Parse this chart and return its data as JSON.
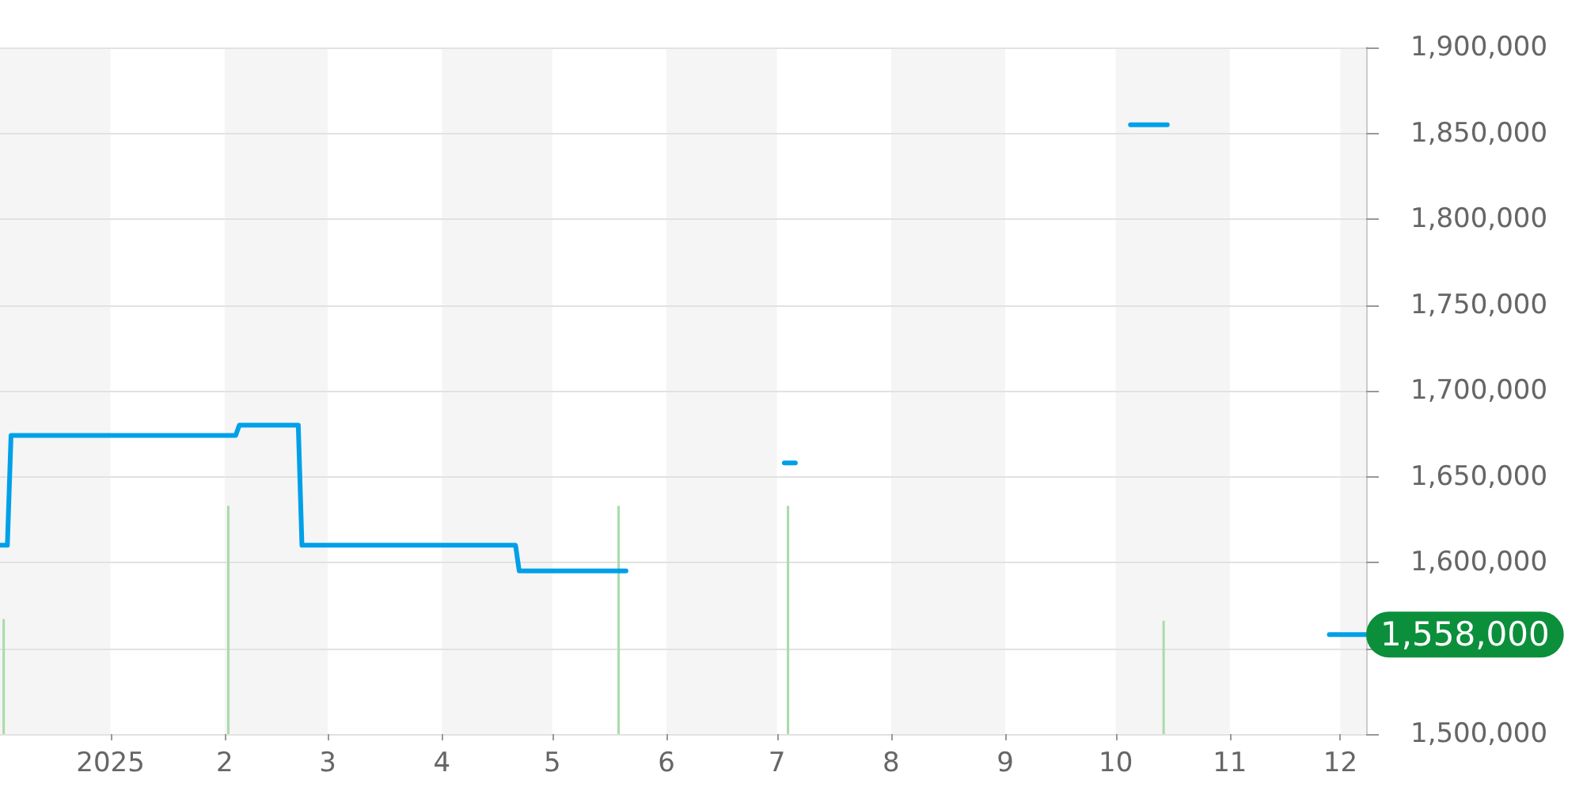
{
  "chart_data": {
    "type": "line",
    "xlim": [
      "2024-12-02",
      "2025-12-08"
    ],
    "xticks": [
      {
        "value": "2025-01-01",
        "label": "2025"
      },
      {
        "value": "2025-02-01",
        "label": "2"
      },
      {
        "value": "2025-03-01",
        "label": "3"
      },
      {
        "value": "2025-04-01",
        "label": "4"
      },
      {
        "value": "2025-05-01",
        "label": "5"
      },
      {
        "value": "2025-06-01",
        "label": "6"
      },
      {
        "value": "2025-07-01",
        "label": "7"
      },
      {
        "value": "2025-08-01",
        "label": "8"
      },
      {
        "value": "2025-09-01",
        "label": "9"
      },
      {
        "value": "2025-10-01",
        "label": "10"
      },
      {
        "value": "2025-11-01",
        "label": "11"
      },
      {
        "value": "2025-12-01",
        "label": "12"
      }
    ],
    "ylim": [
      1500000,
      1900000
    ],
    "yticks": [
      {
        "value": 1500000,
        "label": "1,500,000"
      },
      {
        "value": 1550000,
        "label": null
      },
      {
        "value": 1600000,
        "label": "1,600,000"
      },
      {
        "value": 1650000,
        "label": "1,650,000"
      },
      {
        "value": 1700000,
        "label": "1,700,000"
      },
      {
        "value": 1750000,
        "label": "1,750,000"
      },
      {
        "value": 1800000,
        "label": "1,800,000"
      },
      {
        "value": 1850000,
        "label": "1,850,000"
      },
      {
        "value": 1900000,
        "label": "1,900,000"
      }
    ],
    "grid": "y",
    "line_style": "solid",
    "bands": [
      {
        "axis": "x",
        "from": "2024-12-02",
        "to": "2025-01-01",
        "color": "#f5f5f5"
      },
      {
        "axis": "x",
        "from": "2025-02-01",
        "to": "2025-03-01",
        "color": "#f5f5f5"
      },
      {
        "axis": "x",
        "from": "2025-04-01",
        "to": "2025-05-01",
        "color": "#f5f5f5"
      },
      {
        "axis": "x",
        "from": "2025-06-01",
        "to": "2025-07-01",
        "color": "#f5f5f5"
      },
      {
        "axis": "x",
        "from": "2025-08-01",
        "to": "2025-09-01",
        "color": "#f5f5f5"
      },
      {
        "axis": "x",
        "from": "2025-10-01",
        "to": "2025-11-01",
        "color": "#f5f5f5"
      },
      {
        "axis": "x",
        "from": "2025-12-01",
        "to": "2025-12-08",
        "color": "#f5f5f5"
      }
    ],
    "series": [
      {
        "color": "#00a0e9",
        "x": [
          "2024-12-02",
          "2024-12-04",
          "2024-12-05",
          "2025-02-04",
          "2025-02-05",
          "2025-02-21",
          "2025-02-22",
          "2025-04-21",
          "2025-04-22",
          "2025-05-21",
          "2025-06-10",
          "2025-07-03",
          "2025-07-06",
          "2025-08-20",
          "2025-10-05",
          "2025-10-15",
          "2025-11-05",
          "2025-11-28",
          "2025-12-08"
        ],
        "values": [
          1610000,
          1610000,
          1674000,
          1674000,
          1680000,
          1680000,
          1610000,
          1610000,
          1595000,
          1595000,
          null,
          1658000,
          1658000,
          null,
          1855000,
          1855000,
          null,
          1558000,
          1558000
        ],
        "value_labels": [
          null,
          null,
          null,
          null,
          null,
          null,
          null,
          null,
          null,
          null,
          null,
          null,
          null,
          null,
          null,
          null,
          null,
          null,
          "1,558,000"
        ]
      },
      {
        "type": "bar",
        "color": "#a8dba8",
        "x": [
          "2024-12-03",
          "2025-02-02",
          "2025-05-19",
          "2025-07-04",
          "2025-10-14"
        ],
        "values": [
          1567000,
          1633000,
          1633000,
          1633000,
          1566000
        ]
      }
    ]
  }
}
